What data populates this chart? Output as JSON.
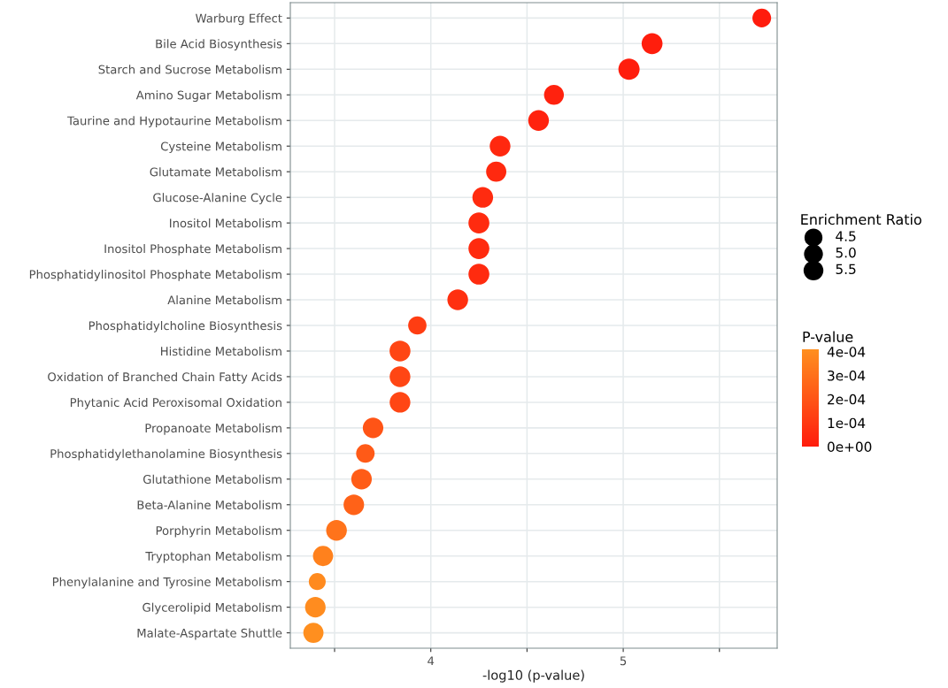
{
  "chart_data": {
    "type": "bubble",
    "xlabel": "-log10 (p-value)",
    "categories": [
      "Warburg Effect",
      "Bile Acid Biosynthesis",
      "Starch and Sucrose Metabolism",
      "Amino Sugar Metabolism",
      "Taurine and Hypotaurine Metabolism",
      "Cysteine Metabolism",
      "Glutamate Metabolism",
      "Glucose-Alanine Cycle",
      "Inositol Metabolism",
      "Inositol Phosphate Metabolism",
      "Phosphatidylinositol Phosphate Metabolism",
      "Alanine Metabolism",
      "Phosphatidylcholine Biosynthesis",
      "Histidine Metabolism",
      "Oxidation of Branched Chain Fatty Acids",
      "Phytanic Acid Peroxisomal Oxidation",
      "Propanoate Metabolism",
      "Phosphatidylethanolamine Biosynthesis",
      "Glutathione Metabolism",
      "Beta-Alanine Metabolism",
      "Porphyrin Metabolism",
      "Tryptophan Metabolism",
      "Phenylalanine and Tyrosine Metabolism",
      "Glycerolipid Metabolism",
      "Malate-Aspartate Shuttle"
    ],
    "orientation": "horizontal",
    "values": [
      5.72,
      5.15,
      5.03,
      4.64,
      4.56,
      4.36,
      4.34,
      4.27,
      4.25,
      4.25,
      4.25,
      4.14,
      3.93,
      3.84,
      3.84,
      3.84,
      3.7,
      3.66,
      3.64,
      3.6,
      3.51,
      3.44,
      3.41,
      3.4,
      3.39
    ],
    "sizes": [
      4.9,
      6.1,
      6.3,
      5.5,
      6.0,
      6.0,
      5.7,
      6.0,
      6.1,
      6.1,
      6.1,
      6.0,
      4.7,
      6.1,
      6.0,
      6.0,
      5.9,
      4.8,
      5.9,
      5.9,
      6.0,
      5.7,
      4.0,
      5.9,
      5.7
    ],
    "cvalues": [
      1.9e-06,
      7e-06,
      9.3e-06,
      2.3e-05,
      2.7e-05,
      4.4e-05,
      4.5e-05,
      5.3e-05,
      5.6e-05,
      5.6e-05,
      5.6e-05,
      7.2e-05,
      0.00012,
      0.00015,
      0.00015,
      0.00015,
      0.0002,
      0.00022,
      0.00023,
      0.00025,
      0.00031,
      0.00036,
      0.00039,
      0.0004,
      0.00041
    ],
    "xlim": [
      3.27,
      5.8
    ],
    "xticks": [
      {
        "value": 3.5,
        "label": null
      },
      4,
      {
        "value": 4.5,
        "label": null
      },
      5,
      {
        "value": 5.5,
        "label": null
      }
    ],
    "legend_title": "Enrichment Ratio",
    "size_legend": [
      {
        "value": 4.5,
        "label": "4.5"
      },
      {
        "value": 5.0,
        "label": "5.0"
      },
      {
        "value": 5.5,
        "label": "5.5"
      }
    ],
    "clabel": "P-value",
    "clim": [
      0,
      0.00041
    ],
    "cticks": [
      {
        "value": 0,
        "label": "0e+00"
      },
      {
        "value": 0.0001,
        "label": "1e-04"
      },
      {
        "value": 0.0002,
        "label": "2e-04"
      },
      {
        "value": 0.0003,
        "label": "3e-04"
      },
      {
        "value": 0.0004,
        "label": "4e-04"
      }
    ],
    "grid": true
  }
}
